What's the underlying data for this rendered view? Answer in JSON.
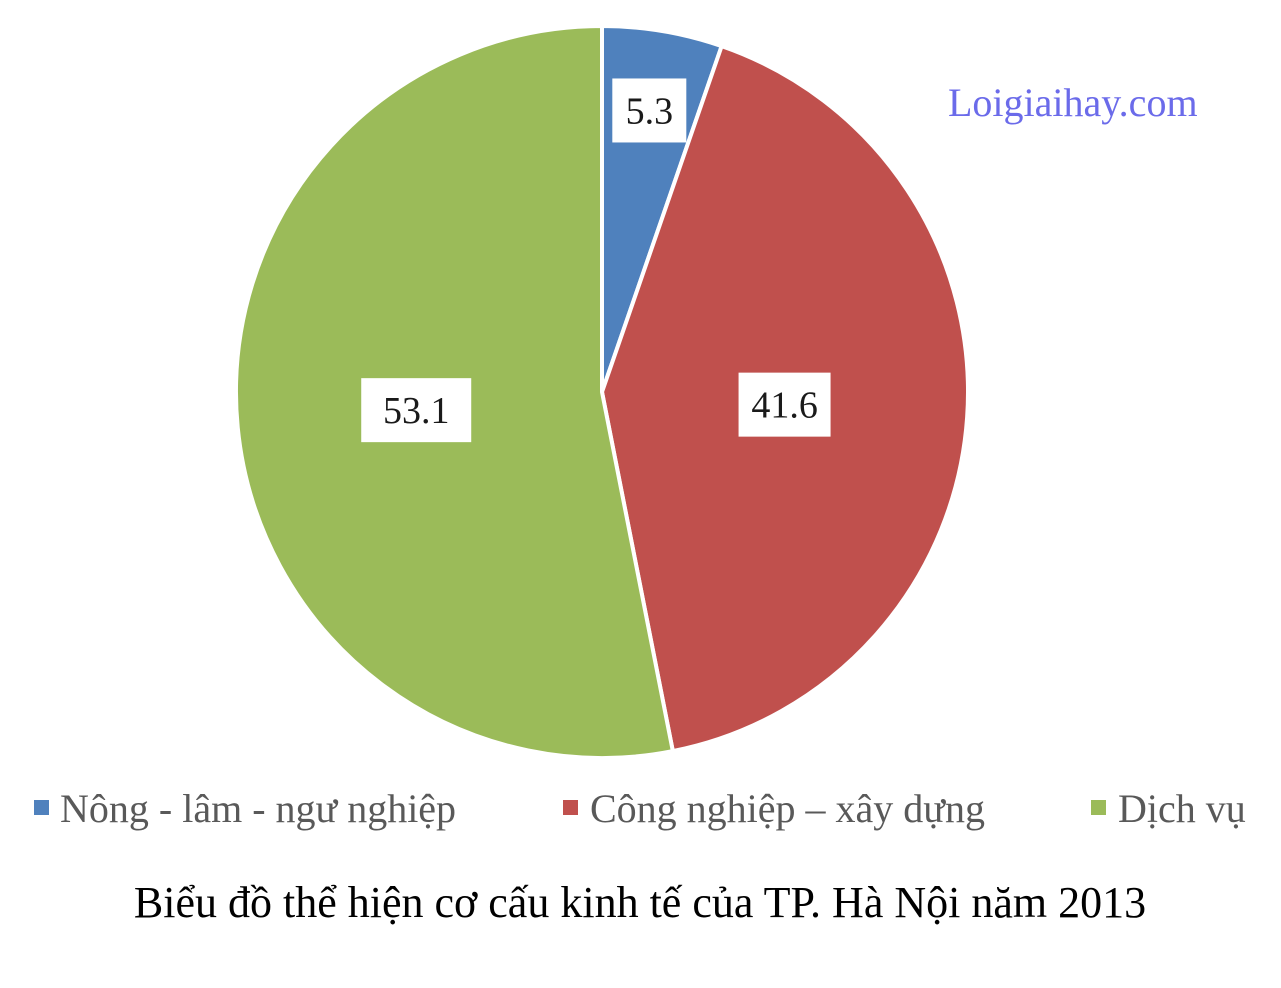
{
  "watermark": "Loigiaihay.com",
  "caption": "Biểu đồ thể hiện cơ cấu kinh tế của TP. Hà Nội năm 2013",
  "chart_data": {
    "type": "pie",
    "title": "Biểu đồ thể hiện cơ cấu kinh tế của TP. Hà Nội năm 2013",
    "start_angle": "12 o'clock, clockwise",
    "legend_position": "bottom",
    "slices": [
      {
        "label": "Nông - lâm - ngư nghiệp",
        "value": 5.3,
        "display": "5.3",
        "color": "#4f81bd"
      },
      {
        "label": "Công nghiệp – xây dựng",
        "value": 41.6,
        "display": "41.6",
        "color": "#c0504d"
      },
      {
        "label": "Dịch vụ",
        "value": 53.1,
        "display": "53.1",
        "color": "#9bbb59"
      }
    ]
  }
}
